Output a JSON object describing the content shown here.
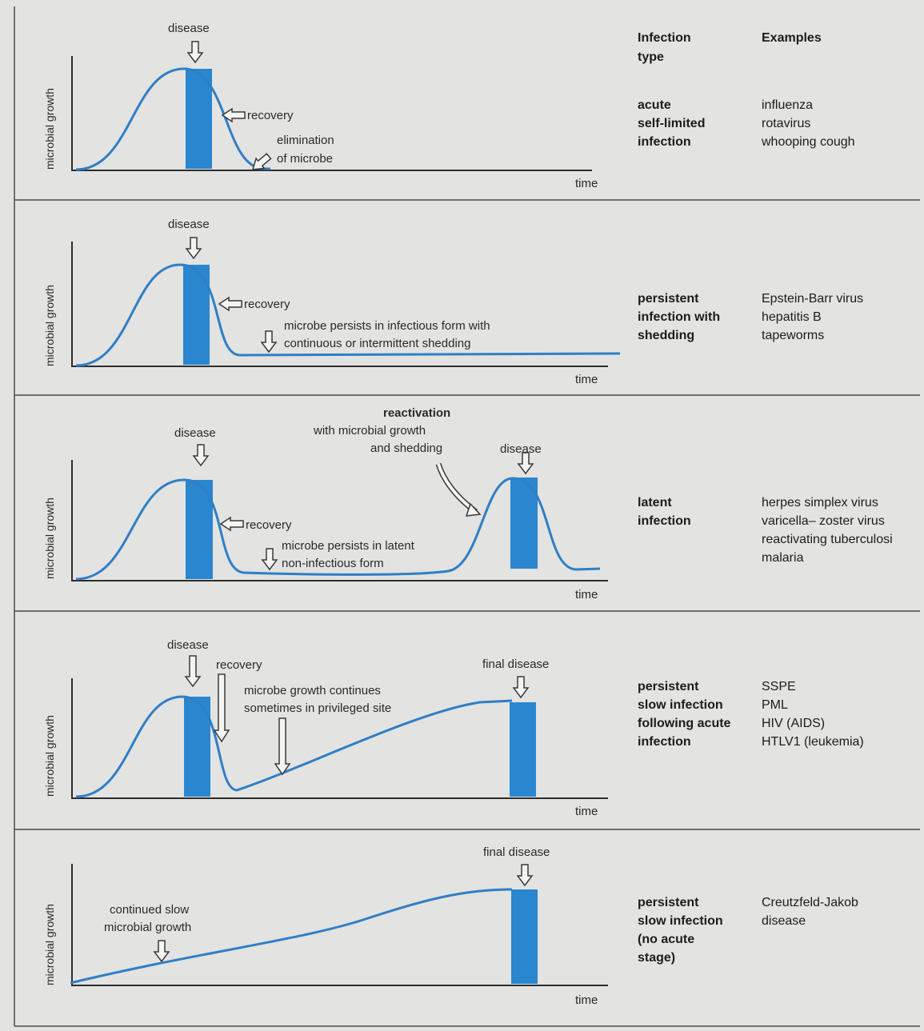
{
  "header": {
    "type_label": [
      "Infection",
      "type"
    ],
    "examples_label": "Examples"
  },
  "panels": [
    {
      "id": "acute",
      "y_axis_label": "microbial growth",
      "x_axis_label": "time",
      "annotations": {
        "disease": "disease",
        "recovery": "recovery",
        "elimination": [
          "elimination",
          "of microbe"
        ]
      },
      "infection_type": [
        "acute",
        "self-limited",
        "infection"
      ],
      "examples": [
        "influenza",
        "rotavirus",
        "whooping cough"
      ]
    },
    {
      "id": "persistent-shedding",
      "y_axis_label": "microbial growth",
      "x_axis_label": "time",
      "annotations": {
        "disease": "disease",
        "recovery": "recovery",
        "persists": [
          "microbe persists in infectious form with",
          "continuous or intermittent shedding"
        ]
      },
      "infection_type": [
        "persistent",
        "infection with",
        "shedding"
      ],
      "examples": [
        "Epstein-Barr virus",
        "hepatitis B",
        "tapeworms"
      ]
    },
    {
      "id": "latent",
      "y_axis_label": "microbial growth",
      "x_axis_label": "time",
      "annotations": {
        "disease": "disease",
        "recovery": "recovery",
        "reactivation": [
          "reactivation",
          "with microbial growth",
          "and shedding"
        ],
        "disease2": "disease",
        "persists": [
          "microbe persists in latent",
          "non-infectious form"
        ]
      },
      "infection_type": [
        "latent",
        "infection"
      ],
      "examples": [
        "herpes simplex virus",
        "varicella– zoster virus",
        "reactivating tuberculosi",
        "malaria"
      ]
    },
    {
      "id": "slow-following-acute",
      "y_axis_label": "microbial growth",
      "x_axis_label": "time",
      "annotations": {
        "disease": "disease",
        "recovery": "recovery",
        "growth": [
          "microbe growth continues",
          "sometimes in privileged site"
        ],
        "final_disease": "final disease"
      },
      "infection_type": [
        "persistent",
        "slow infection",
        "following acute",
        "infection"
      ],
      "examples": [
        "SSPE",
        "PML",
        "HIV (AIDS)",
        "HTLV1 (leukemia)"
      ]
    },
    {
      "id": "slow-no-acute",
      "y_axis_label": "microbial growth",
      "x_axis_label": "time",
      "annotations": {
        "growth": [
          "continued slow",
          "microbial growth"
        ],
        "final_disease": "final disease"
      },
      "infection_type": [
        "persistent",
        "slow infection",
        "(no acute",
        "stage)"
      ],
      "examples": [
        "Creutzfeld-Jakob",
        "disease"
      ]
    }
  ],
  "colors": {
    "curve": "#2f7fc6",
    "disease_bar": "#2a86cf",
    "background": "#e3e3e1"
  }
}
